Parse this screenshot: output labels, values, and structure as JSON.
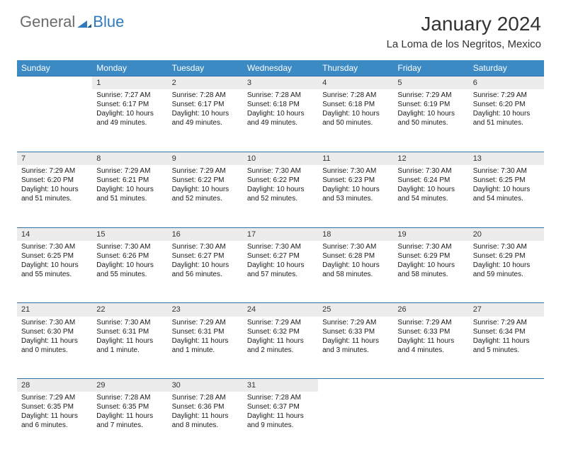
{
  "brand": {
    "part1": "General",
    "part2": "Blue",
    "accent_color": "#2f7abf",
    "muted_color": "#6b6b6b"
  },
  "header": {
    "month_title": "January 2024",
    "location": "La Loma de los Negritos, Mexico",
    "title_fontsize_pt": 21,
    "location_fontsize_pt": 11
  },
  "calendar": {
    "header_bg": "#3b8ac4",
    "header_fg": "#ffffff",
    "daynum_bg": "#ececec",
    "row_divider": "#2f6fa3",
    "body_font_pt": 7.5,
    "weekdays": [
      "Sunday",
      "Monday",
      "Tuesday",
      "Wednesday",
      "Thursday",
      "Friday",
      "Saturday"
    ],
    "weeks": [
      {
        "nums": [
          "",
          "1",
          "2",
          "3",
          "4",
          "5",
          "6"
        ],
        "cells": [
          null,
          {
            "sunrise": "Sunrise: 7:27 AM",
            "sunset": "Sunset: 6:17 PM",
            "daylight1": "Daylight: 10 hours",
            "daylight2": "and 49 minutes."
          },
          {
            "sunrise": "Sunrise: 7:28 AM",
            "sunset": "Sunset: 6:17 PM",
            "daylight1": "Daylight: 10 hours",
            "daylight2": "and 49 minutes."
          },
          {
            "sunrise": "Sunrise: 7:28 AM",
            "sunset": "Sunset: 6:18 PM",
            "daylight1": "Daylight: 10 hours",
            "daylight2": "and 49 minutes."
          },
          {
            "sunrise": "Sunrise: 7:28 AM",
            "sunset": "Sunset: 6:18 PM",
            "daylight1": "Daylight: 10 hours",
            "daylight2": "and 50 minutes."
          },
          {
            "sunrise": "Sunrise: 7:29 AM",
            "sunset": "Sunset: 6:19 PM",
            "daylight1": "Daylight: 10 hours",
            "daylight2": "and 50 minutes."
          },
          {
            "sunrise": "Sunrise: 7:29 AM",
            "sunset": "Sunset: 6:20 PM",
            "daylight1": "Daylight: 10 hours",
            "daylight2": "and 51 minutes."
          }
        ]
      },
      {
        "nums": [
          "7",
          "8",
          "9",
          "10",
          "11",
          "12",
          "13"
        ],
        "cells": [
          {
            "sunrise": "Sunrise: 7:29 AM",
            "sunset": "Sunset: 6:20 PM",
            "daylight1": "Daylight: 10 hours",
            "daylight2": "and 51 minutes."
          },
          {
            "sunrise": "Sunrise: 7:29 AM",
            "sunset": "Sunset: 6:21 PM",
            "daylight1": "Daylight: 10 hours",
            "daylight2": "and 51 minutes."
          },
          {
            "sunrise": "Sunrise: 7:29 AM",
            "sunset": "Sunset: 6:22 PM",
            "daylight1": "Daylight: 10 hours",
            "daylight2": "and 52 minutes."
          },
          {
            "sunrise": "Sunrise: 7:30 AM",
            "sunset": "Sunset: 6:22 PM",
            "daylight1": "Daylight: 10 hours",
            "daylight2": "and 52 minutes."
          },
          {
            "sunrise": "Sunrise: 7:30 AM",
            "sunset": "Sunset: 6:23 PM",
            "daylight1": "Daylight: 10 hours",
            "daylight2": "and 53 minutes."
          },
          {
            "sunrise": "Sunrise: 7:30 AM",
            "sunset": "Sunset: 6:24 PM",
            "daylight1": "Daylight: 10 hours",
            "daylight2": "and 54 minutes."
          },
          {
            "sunrise": "Sunrise: 7:30 AM",
            "sunset": "Sunset: 6:25 PM",
            "daylight1": "Daylight: 10 hours",
            "daylight2": "and 54 minutes."
          }
        ]
      },
      {
        "nums": [
          "14",
          "15",
          "16",
          "17",
          "18",
          "19",
          "20"
        ],
        "cells": [
          {
            "sunrise": "Sunrise: 7:30 AM",
            "sunset": "Sunset: 6:25 PM",
            "daylight1": "Daylight: 10 hours",
            "daylight2": "and 55 minutes."
          },
          {
            "sunrise": "Sunrise: 7:30 AM",
            "sunset": "Sunset: 6:26 PM",
            "daylight1": "Daylight: 10 hours",
            "daylight2": "and 55 minutes."
          },
          {
            "sunrise": "Sunrise: 7:30 AM",
            "sunset": "Sunset: 6:27 PM",
            "daylight1": "Daylight: 10 hours",
            "daylight2": "and 56 minutes."
          },
          {
            "sunrise": "Sunrise: 7:30 AM",
            "sunset": "Sunset: 6:27 PM",
            "daylight1": "Daylight: 10 hours",
            "daylight2": "and 57 minutes."
          },
          {
            "sunrise": "Sunrise: 7:30 AM",
            "sunset": "Sunset: 6:28 PM",
            "daylight1": "Daylight: 10 hours",
            "daylight2": "and 58 minutes."
          },
          {
            "sunrise": "Sunrise: 7:30 AM",
            "sunset": "Sunset: 6:29 PM",
            "daylight1": "Daylight: 10 hours",
            "daylight2": "and 58 minutes."
          },
          {
            "sunrise": "Sunrise: 7:30 AM",
            "sunset": "Sunset: 6:29 PM",
            "daylight1": "Daylight: 10 hours",
            "daylight2": "and 59 minutes."
          }
        ]
      },
      {
        "nums": [
          "21",
          "22",
          "23",
          "24",
          "25",
          "26",
          "27"
        ],
        "cells": [
          {
            "sunrise": "Sunrise: 7:30 AM",
            "sunset": "Sunset: 6:30 PM",
            "daylight1": "Daylight: 11 hours",
            "daylight2": "and 0 minutes."
          },
          {
            "sunrise": "Sunrise: 7:30 AM",
            "sunset": "Sunset: 6:31 PM",
            "daylight1": "Daylight: 11 hours",
            "daylight2": "and 1 minute."
          },
          {
            "sunrise": "Sunrise: 7:29 AM",
            "sunset": "Sunset: 6:31 PM",
            "daylight1": "Daylight: 11 hours",
            "daylight2": "and 1 minute."
          },
          {
            "sunrise": "Sunrise: 7:29 AM",
            "sunset": "Sunset: 6:32 PM",
            "daylight1": "Daylight: 11 hours",
            "daylight2": "and 2 minutes."
          },
          {
            "sunrise": "Sunrise: 7:29 AM",
            "sunset": "Sunset: 6:33 PM",
            "daylight1": "Daylight: 11 hours",
            "daylight2": "and 3 minutes."
          },
          {
            "sunrise": "Sunrise: 7:29 AM",
            "sunset": "Sunset: 6:33 PM",
            "daylight1": "Daylight: 11 hours",
            "daylight2": "and 4 minutes."
          },
          {
            "sunrise": "Sunrise: 7:29 AM",
            "sunset": "Sunset: 6:34 PM",
            "daylight1": "Daylight: 11 hours",
            "daylight2": "and 5 minutes."
          }
        ]
      },
      {
        "nums": [
          "28",
          "29",
          "30",
          "31",
          "",
          "",
          ""
        ],
        "cells": [
          {
            "sunrise": "Sunrise: 7:29 AM",
            "sunset": "Sunset: 6:35 PM",
            "daylight1": "Daylight: 11 hours",
            "daylight2": "and 6 minutes."
          },
          {
            "sunrise": "Sunrise: 7:28 AM",
            "sunset": "Sunset: 6:35 PM",
            "daylight1": "Daylight: 11 hours",
            "daylight2": "and 7 minutes."
          },
          {
            "sunrise": "Sunrise: 7:28 AM",
            "sunset": "Sunset: 6:36 PM",
            "daylight1": "Daylight: 11 hours",
            "daylight2": "and 8 minutes."
          },
          {
            "sunrise": "Sunrise: 7:28 AM",
            "sunset": "Sunset: 6:37 PM",
            "daylight1": "Daylight: 11 hours",
            "daylight2": "and 9 minutes."
          },
          null,
          null,
          null
        ]
      }
    ]
  }
}
